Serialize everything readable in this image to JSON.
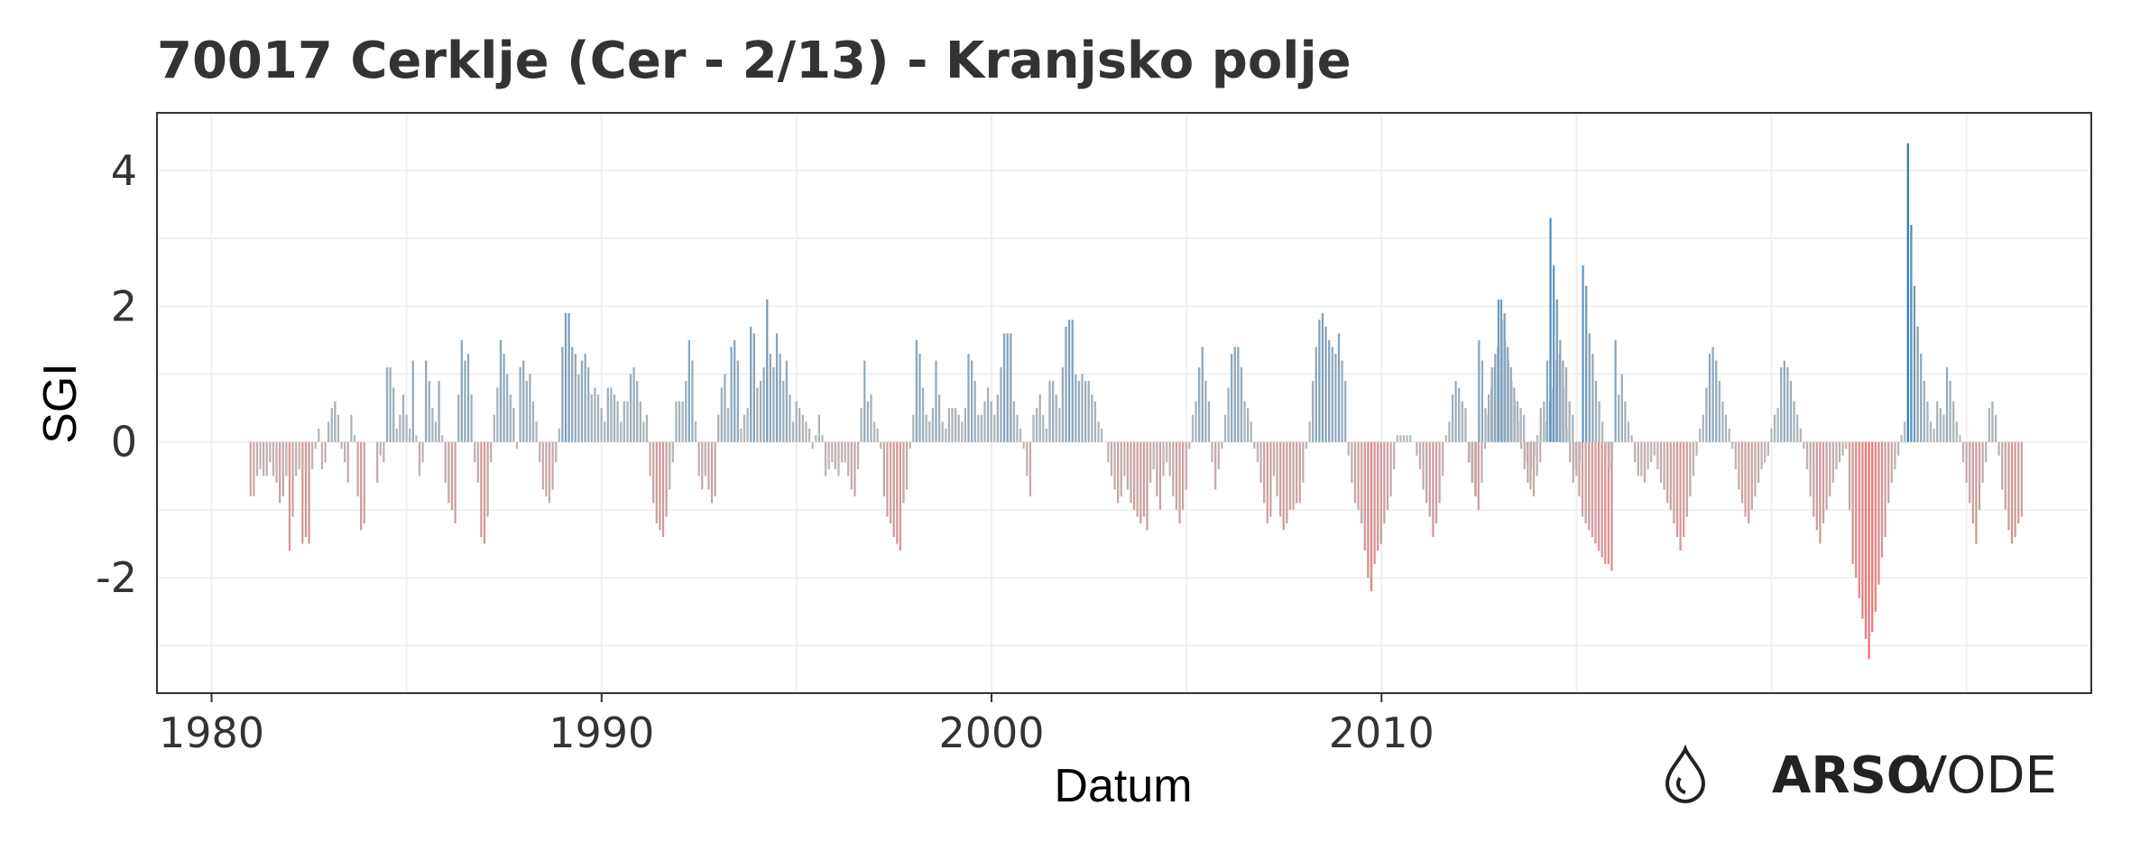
{
  "logo": {
    "brand_bold": "ARSO",
    "brand_light": "VODE",
    "icon": "water-drop-icon"
  },
  "chart_data": {
    "type": "bar",
    "title": "70017 Cerklje (Cer - 2/13) - Kranjsko polje",
    "xlabel": "Datum",
    "ylabel": "SGI",
    "xlim": [
      1978.6,
      2028.2
    ],
    "ylim": [
      -3.7,
      4.85
    ],
    "x_ticks": [
      1980,
      1990,
      2000,
      2010
    ],
    "y_ticks": [
      4,
      2,
      0,
      -2
    ],
    "y_tick_labels": [
      "4",
      "2",
      "0",
      "-2"
    ],
    "grid": true,
    "legend": "none",
    "colors": {
      "positive": "#2b7bba",
      "negative": "#f07070",
      "neutral": "#b9b9b9"
    },
    "series": [
      {
        "x_start": 1981.0,
        "x_step": 0.0833,
        "values": [
          -0.8,
          -0.8,
          -0.5,
          -0.4,
          -0.5,
          -0.5,
          -0.3,
          -0.5,
          -0.6,
          -0.9,
          -0.8,
          -0.5,
          -1.6,
          -1.1,
          -0.5,
          -0.4,
          -1.5,
          -1.4,
          -1.5,
          -0.4,
          -0.1,
          0.2,
          -0.4,
          -0.3,
          0.3,
          0.5,
          0.6,
          0.4,
          -0.1,
          -0.3,
          -0.6,
          0.4,
          0.1,
          -0.8,
          -1.3,
          -1.2,
          0.0,
          0.0,
          0.0,
          -0.6,
          -0.2,
          -0.3,
          1.1,
          1.1,
          0.8,
          0.2,
          0.4,
          0.7,
          0.4,
          0.2,
          1.2,
          0.1,
          -0.5,
          -0.3,
          1.2,
          0.9,
          0.5,
          0.3,
          0.9,
          0.1,
          -0.6,
          -0.9,
          -1.0,
          -1.2,
          0.7,
          1.5,
          1.2,
          1.3,
          0.7,
          -0.3,
          -0.6,
          -1.4,
          -1.5,
          -1.1,
          -0.3,
          0.4,
          0.8,
          1.5,
          1.3,
          1.0,
          0.7,
          0.5,
          -0.1,
          1.1,
          1.2,
          0.9,
          1.0,
          0.6,
          0.3,
          -0.3,
          -0.7,
          -0.8,
          -0.9,
          -0.7,
          -0.3,
          0.2,
          1.4,
          1.9,
          1.9,
          1.4,
          1.3,
          1.0,
          1.2,
          1.3,
          1.1,
          0.7,
          0.8,
          0.7,
          0.5,
          0.3,
          0.8,
          0.8,
          0.7,
          0.6,
          0.3,
          0.6,
          0.6,
          1.0,
          1.1,
          0.9,
          0.6,
          0.3,
          0.4,
          -0.5,
          -0.9,
          -1.2,
          -1.3,
          -1.4,
          -1.1,
          -0.7,
          -0.3,
          0.6,
          0.6,
          0.6,
          0.9,
          1.5,
          1.2,
          0.3,
          -0.5,
          -0.7,
          -0.5,
          -0.7,
          -0.9,
          -0.8,
          0.4,
          0.8,
          1.0,
          0.5,
          1.4,
          1.5,
          1.2,
          0.2,
          0.4,
          0.5,
          1.7,
          1.6,
          0.8,
          0.9,
          1.1,
          2.1,
          1.3,
          1.1,
          1.6,
          1.3,
          0.9,
          1.2,
          0.7,
          0.3,
          0.6,
          0.5,
          0.4,
          0.3,
          0.2,
          -0.1,
          0.1,
          0.4,
          0.1,
          -0.5,
          -0.4,
          -0.3,
          -0.4,
          -0.5,
          -0.3,
          -0.3,
          -0.5,
          -0.7,
          -0.8,
          -0.4,
          0.5,
          1.2,
          0.6,
          0.7,
          0.3,
          0.2,
          -0.1,
          -0.8,
          -1.1,
          -1.2,
          -1.4,
          -1.5,
          -1.6,
          -0.9,
          -0.7,
          -0.1,
          0.4,
          1.5,
          1.3,
          0.8,
          0.4,
          0.3,
          0.5,
          1.2,
          0.7,
          0.3,
          0.2,
          0.5,
          0.5,
          0.5,
          0.4,
          0.3,
          0.5,
          1.3,
          1.2,
          0.9,
          0.4,
          0.4,
          0.6,
          0.8,
          0.6,
          0.4,
          0.7,
          1.1,
          1.6,
          1.6,
          1.6,
          0.6,
          0.4,
          0.2,
          -0.1,
          -0.5,
          -0.8,
          0.4,
          0.5,
          0.7,
          0.4,
          0.2,
          0.9,
          0.9,
          0.7,
          0.5,
          1.1,
          1.7,
          1.8,
          1.8,
          1.0,
          0.9,
          1.0,
          0.9,
          0.9,
          0.7,
          0.6,
          0.3,
          0.2,
          0.0,
          -0.3,
          -0.5,
          -0.7,
          -0.9,
          -0.8,
          -0.5,
          -0.7,
          -0.9,
          -1.0,
          -1.1,
          -1.2,
          -1.1,
          -1.3,
          -0.6,
          -0.4,
          -0.8,
          -1.0,
          -0.5,
          -0.3,
          -0.5,
          -0.8,
          -1.0,
          -1.2,
          -1.0,
          -0.7,
          -0.1,
          0.4,
          0.6,
          1.1,
          1.4,
          0.9,
          0.6,
          -0.3,
          -0.7,
          -0.4,
          -0.1,
          0.4,
          0.8,
          1.3,
          1.4,
          1.4,
          1.1,
          0.6,
          0.5,
          0.3,
          -0.1,
          -0.3,
          -0.6,
          -0.9,
          -1.2,
          -1.1,
          -0.5,
          -0.8,
          -1.1,
          -1.3,
          -1.2,
          -1.0,
          -1.0,
          -0.9,
          -0.9,
          -0.6,
          -0.1,
          0.3,
          0.9,
          1.4,
          1.8,
          1.9,
          1.7,
          1.5,
          1.4,
          1.3,
          1.6,
          1.2,
          0.9,
          -0.2,
          -0.6,
          -0.9,
          -1.0,
          -1.2,
          -1.6,
          -2.0,
          -2.2,
          -1.8,
          -1.6,
          -1.5,
          -1.2,
          -1.0,
          -0.8,
          -0.4,
          0.1,
          0.1,
          0.1,
          0.1,
          0.1,
          0.0,
          -0.2,
          -0.4,
          -0.7,
          -0.9,
          -1.1,
          -1.4,
          -1.2,
          -0.9,
          -0.5,
          0.1,
          0.3,
          0.7,
          0.9,
          0.8,
          0.6,
          0.5,
          -0.3,
          -0.6,
          -0.8,
          -1.0,
          -0.6,
          -0.1,
          0.4,
          0.8,
          1.1,
          1.4,
          2.1,
          1.9,
          1.4,
          1.1,
          0.8,
          0.6,
          0.5,
          0.4,
          -0.3,
          -0.7,
          -0.8,
          -0.5,
          -0.3,
          0.0,
          0.3,
          0.6,
          0.8,
          1.2,
          1.3,
          1.2,
          1.1,
          0.6,
          0.4,
          -0.4,
          -0.8,
          -1.1,
          -1.2,
          -1.3,
          -1.4,
          -1.5,
          -1.6,
          -1.7,
          -1.8,
          -1.8,
          -1.9
        ]
      },
      {
        "x_start": 2012.0,
        "x_step": 0.0833,
        "values": [
          0.0,
          0.0,
          0.0,
          -0.3,
          -0.6,
          -0.8,
          1.5,
          1.2,
          0.5,
          0.7,
          1.1,
          1.3,
          2.1,
          1.8,
          1.5,
          1.2,
          0.9,
          0.6,
          0.3,
          -0.1,
          -0.4,
          -0.6,
          -0.4,
          -0.2,
          0.1,
          0.5,
          0.6,
          1.2,
          3.3,
          2.6,
          2.1,
          1.5,
          0.8,
          0.2,
          -0.3,
          -0.6,
          -0.5,
          -0.3,
          2.6,
          2.3,
          1.6,
          1.3,
          0.9,
          0.6,
          0.3,
          -0.1,
          -0.4,
          -0.3,
          1.5,
          0.7,
          1.0,
          0.6,
          0.3,
          0.1,
          -0.3,
          -0.5,
          -0.5,
          -0.6,
          -0.4,
          -0.3,
          -0.2,
          -0.4,
          -0.6,
          -0.7,
          -0.9,
          -1.0,
          -1.2,
          -1.4,
          -1.6,
          -1.4,
          -1.1,
          -0.8,
          -0.5,
          -0.2,
          0.2,
          0.4,
          0.8,
          1.3,
          1.4,
          1.2,
          0.9,
          0.6,
          0.4,
          0.2,
          -0.1,
          -0.4,
          -0.7,
          -0.9,
          -1.1,
          -1.2,
          -1.0,
          -0.8,
          -0.6,
          -0.4,
          -0.3,
          -0.2,
          0.2,
          0.4,
          0.5,
          1.1,
          1.2,
          1.1,
          0.9,
          0.6,
          0.4,
          0.2,
          -0.1,
          -0.4,
          -0.8,
          -1.1,
          -1.3,
          -1.5,
          -1.2,
          -1.0,
          -0.8,
          -0.6,
          -0.4,
          -0.3,
          -0.2,
          -0.1
        ]
      },
      {
        "x_start": 2022.0,
        "x_step": 0.0833,
        "values": [
          -1.0,
          -1.8,
          -2.0,
          -2.3,
          -2.6,
          -2.9,
          -3.2,
          -2.8,
          -2.5,
          -2.1,
          -1.7,
          -1.4,
          -0.9,
          -0.6,
          -0.4,
          -0.2,
          0.1,
          0.3,
          4.4,
          3.2,
          2.3,
          1.7,
          1.3,
          0.9,
          0.6,
          0.3,
          0.2,
          0.6,
          0.5,
          0.4,
          1.1,
          0.9,
          0.6,
          0.3,
          0.1,
          -0.3,
          -0.6,
          -0.9,
          -1.2,
          -1.5,
          -1.0,
          -0.6,
          -0.3,
          0.5,
          0.6,
          0.4,
          -0.2,
          -0.7,
          -1.0,
          -1.3,
          -1.5,
          -1.4,
          -1.2,
          -1.1
        ]
      }
    ]
  }
}
